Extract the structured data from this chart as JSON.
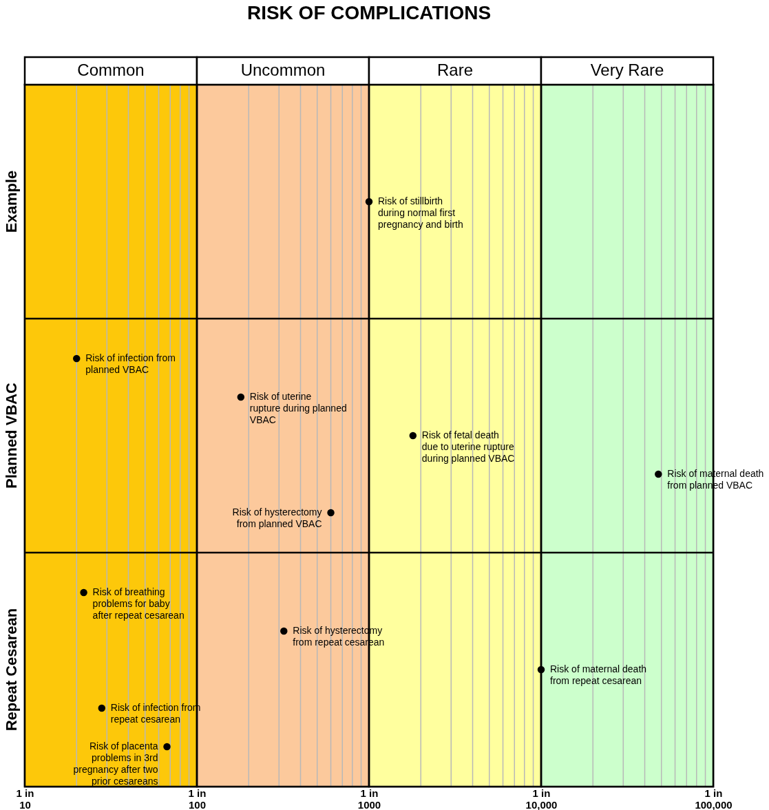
{
  "chart_data": {
    "type": "scatter",
    "orientation": "horizontal",
    "title": "RISK OF COMPLICATIONS",
    "log": "x",
    "grid": true,
    "marker": "circle",
    "categories": [
      "Example",
      "Planned VBAC",
      "Repeat Cesarean"
    ],
    "xlim": [
      10,
      100000
    ],
    "xticks": [
      10,
      {
        "value": 20,
        "label": null
      },
      {
        "value": 30,
        "label": null
      },
      {
        "value": 40,
        "label": null
      },
      {
        "value": 50,
        "label": null
      },
      {
        "value": 60,
        "label": null
      },
      {
        "value": 70,
        "label": null
      },
      {
        "value": 80,
        "label": null
      },
      {
        "value": 90,
        "label": null
      },
      100,
      {
        "value": 200,
        "label": null
      },
      {
        "value": 300,
        "label": null
      },
      {
        "value": 400,
        "label": null
      },
      {
        "value": 500,
        "label": null
      },
      {
        "value": 600,
        "label": null
      },
      {
        "value": 700,
        "label": null
      },
      {
        "value": 800,
        "label": null
      },
      {
        "value": 900,
        "label": null
      },
      1000,
      {
        "value": 2000,
        "label": null
      },
      {
        "value": 3000,
        "label": null
      },
      {
        "value": 4000,
        "label": null
      },
      {
        "value": 5000,
        "label": null
      },
      {
        "value": 6000,
        "label": null
      },
      {
        "value": 7000,
        "label": null
      },
      {
        "value": 8000,
        "label": null
      },
      {
        "value": 9000,
        "label": null
      },
      {
        "value": 10000,
        "label": "10,000"
      },
      {
        "value": 20000,
        "label": null
      },
      {
        "value": 30000,
        "label": null
      },
      {
        "value": 40000,
        "label": null
      },
      {
        "value": 50000,
        "label": null
      },
      {
        "value": 60000,
        "label": null
      },
      {
        "value": 70000,
        "label": null
      },
      {
        "value": 80000,
        "label": null
      },
      {
        "value": 90000,
        "label": null
      },
      {
        "value": 100000,
        "label": "100,000"
      }
    ],
    "series": [
      {
        "color": "#000000",
        "values": [
          1000,
          20,
          22
        ]
      },
      {
        "color": "#000000",
        "values": [
          null,
          180,
          320
        ]
      },
      {
        "color": "#000000",
        "values": [
          null,
          1800,
          10000
        ]
      },
      {
        "color": "#000000",
        "values": [
          null,
          48000,
          28
        ]
      },
      {
        "color": "#000000",
        "values": [
          null,
          600,
          67
        ]
      }
    ],
    "bands": [
      {
        "axis": "x",
        "from": 10,
        "to": 100,
        "label": "Common",
        "color": "#fdc80a"
      },
      {
        "axis": "x",
        "from": 100,
        "to": 1000,
        "label": "Uncommon",
        "color": "#fcc99c"
      },
      {
        "axis": "x",
        "from": 1000,
        "to": 10000,
        "label": "Rare",
        "color": "#ffff9e"
      },
      {
        "axis": "x",
        "from": 10000,
        "to": 100000,
        "label": "Very Rare",
        "color": "#ccffcc"
      }
    ],
    "annotations": [
      "Risk of stillbirth during normal first pregnancy and birth",
      "Risk of infection from planned VBAC",
      "Risk of uterine rupture during planned VBAC",
      "Risk of fetal death due to uterine rupture during planned VBAC",
      "Risk of maternal death from planned VBAC",
      "Risk of hysterectomy from planned VBAC",
      "Risk of breathing problems for baby after repeat cesarean",
      "Risk of hysterectomy from repeat cesarean",
      "Risk of maternal death from repeat cesarean",
      "Risk of infection from repeat cesarean",
      "Risk of placenta problems in 3rd pregnancy after two prior cesareans",
      "1 in",
      "1 in",
      "1 in",
      "1 in",
      "1 in"
    ]
  }
}
